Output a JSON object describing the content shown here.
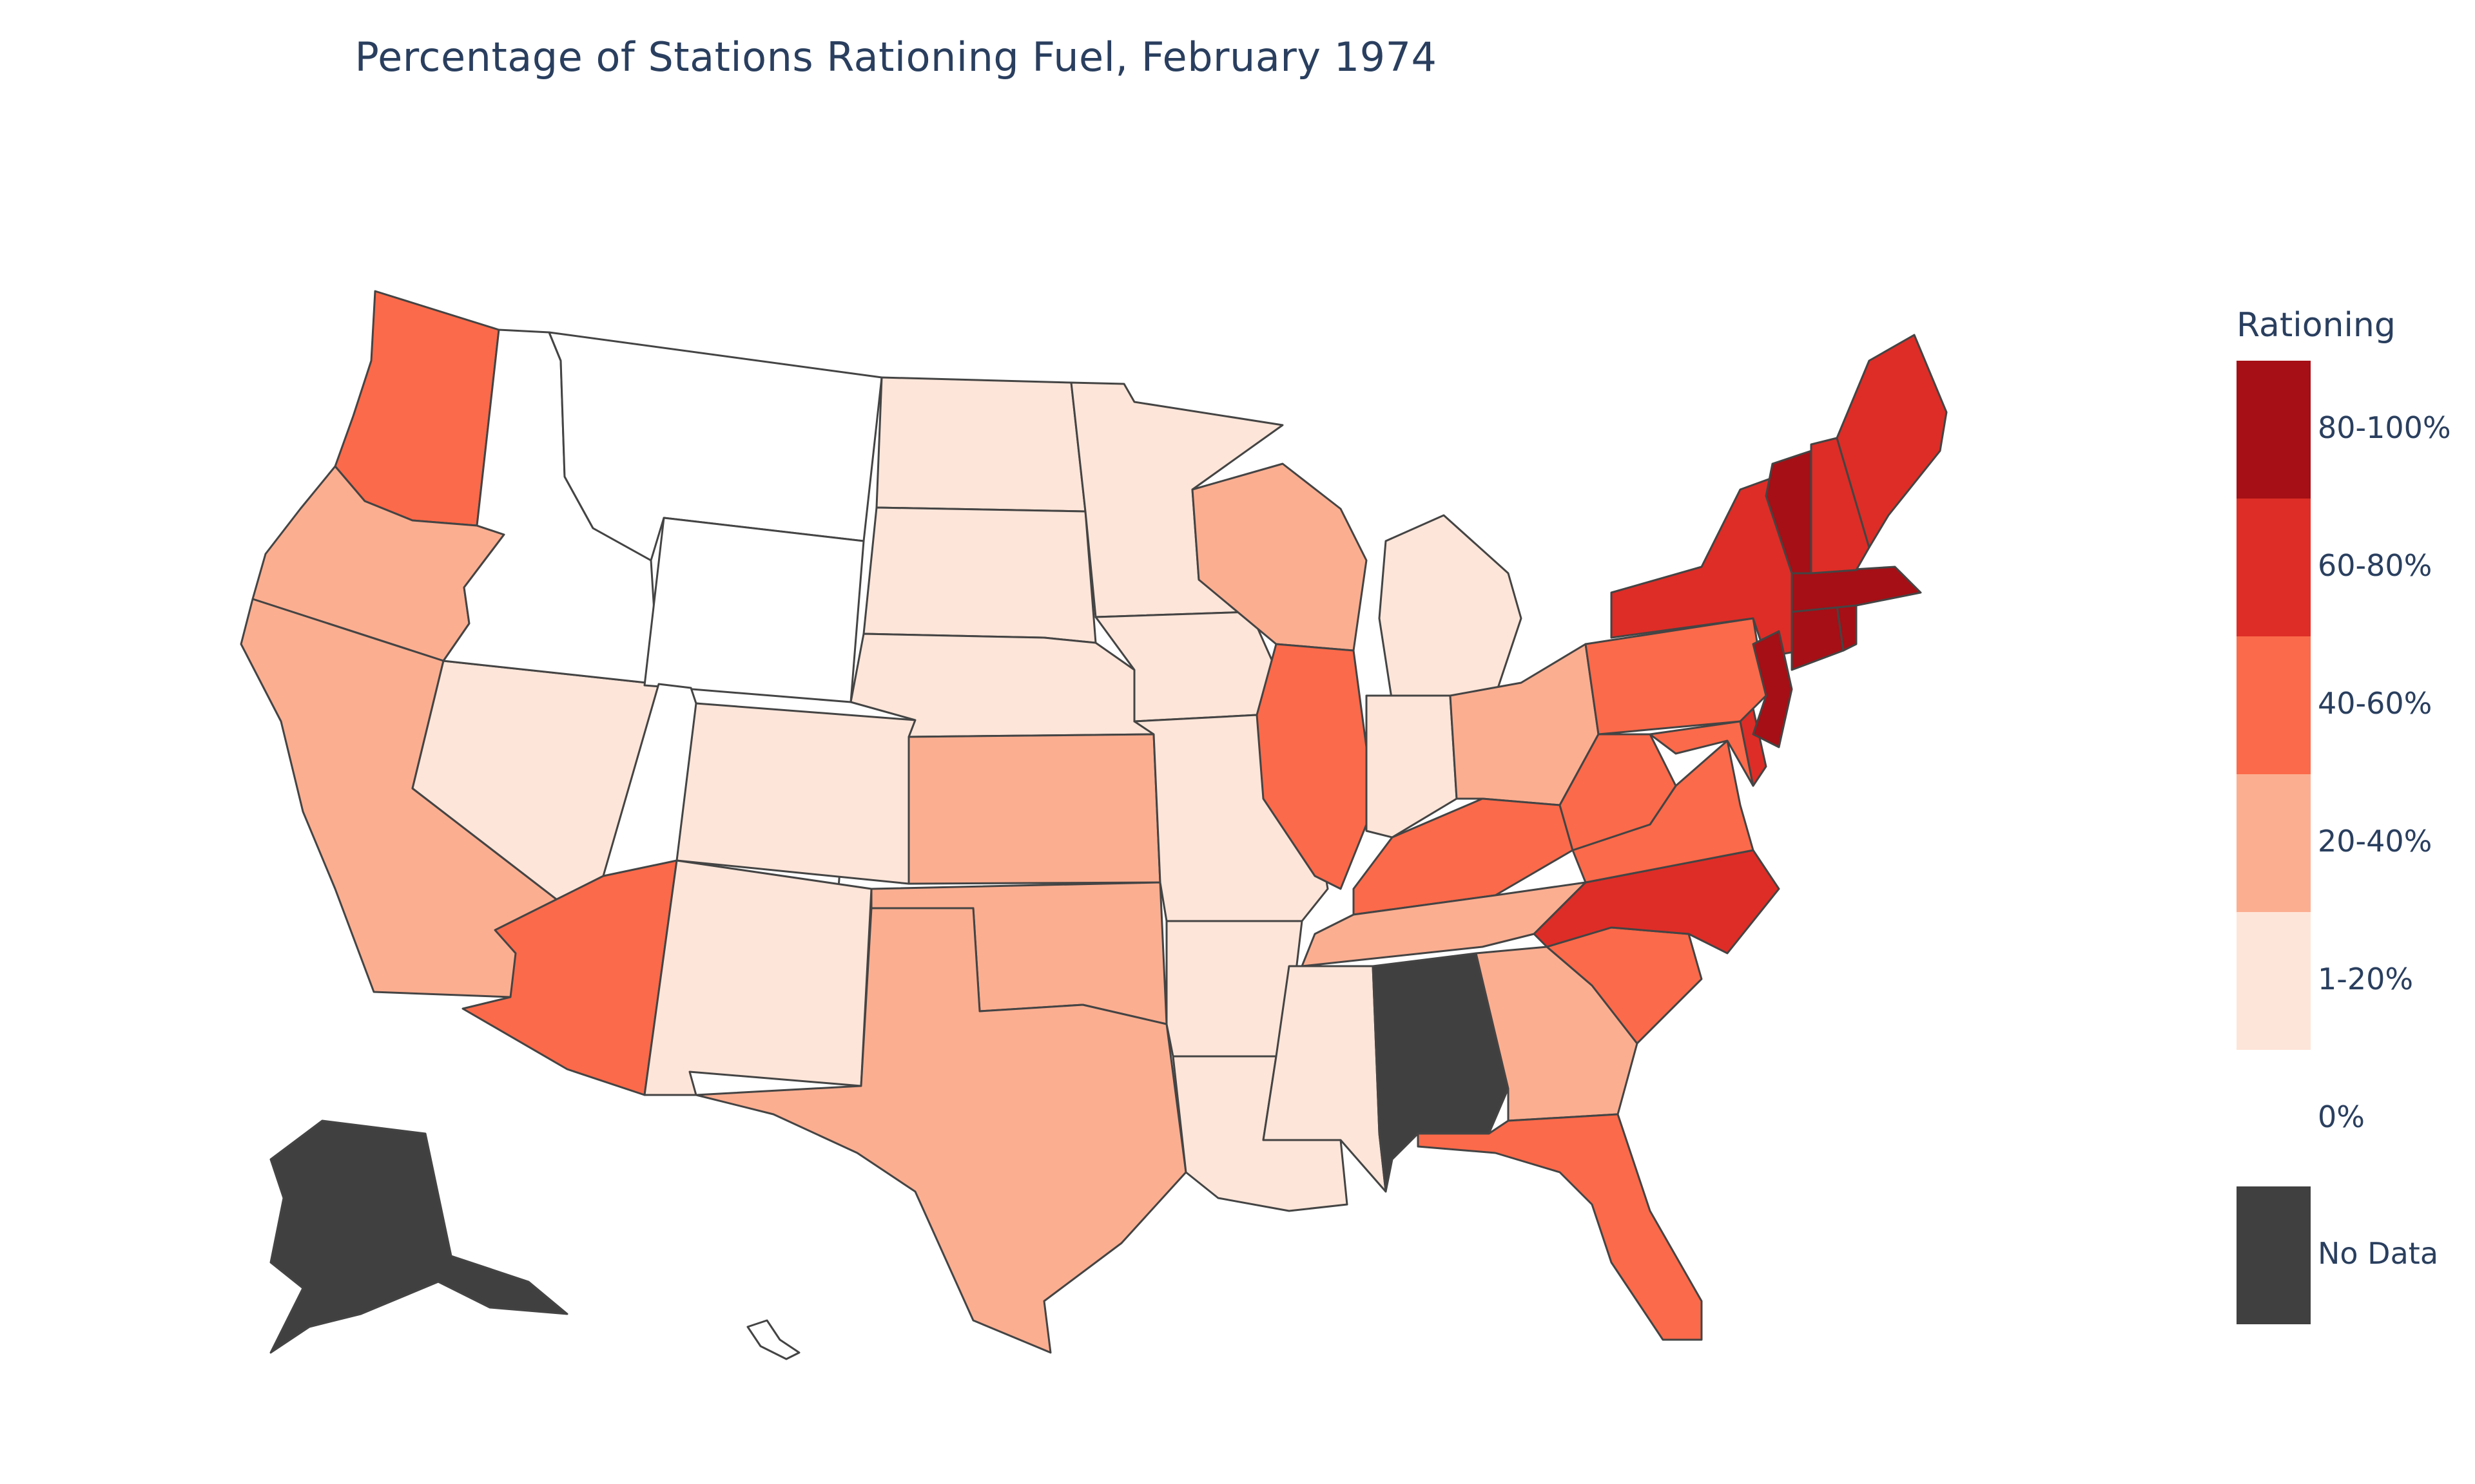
{
  "chart_data": {
    "type": "choropleth",
    "title": "Percentage of Stations Rationing Fuel, February 1974",
    "legend": {
      "title": "Rationing",
      "placement": "right",
      "bins": [
        {
          "label": "80-100%",
          "color": "#a50f15"
        },
        {
          "label": "60-80%",
          "color": "#de2d26"
        },
        {
          "label": "40-60%",
          "color": "#fb6a4a"
        },
        {
          "label": "20-40%",
          "color": "#fcae91"
        },
        {
          "label": "1-20%",
          "color": "#fee5d9"
        },
        {
          "label": "0%",
          "color": "#ffffff"
        },
        {
          "label": "No Data",
          "color": "#404040"
        }
      ]
    },
    "states": [
      {
        "name": "WA",
        "bin": "40-60%"
      },
      {
        "name": "OR",
        "bin": "20-40%"
      },
      {
        "name": "CA",
        "bin": "20-40%"
      },
      {
        "name": "NV",
        "bin": "1-20%"
      },
      {
        "name": "ID",
        "bin": "0%"
      },
      {
        "name": "MT",
        "bin": "0%"
      },
      {
        "name": "WY",
        "bin": "0%"
      },
      {
        "name": "UT",
        "bin": "0%"
      },
      {
        "name": "CO",
        "bin": "1-20%"
      },
      {
        "name": "AZ",
        "bin": "40-60%"
      },
      {
        "name": "NM",
        "bin": "1-20%"
      },
      {
        "name": "ND",
        "bin": "1-20%"
      },
      {
        "name": "SD",
        "bin": "1-20%"
      },
      {
        "name": "NE",
        "bin": "1-20%"
      },
      {
        "name": "KS",
        "bin": "20-40%"
      },
      {
        "name": "OK",
        "bin": "20-40%"
      },
      {
        "name": "TX",
        "bin": "20-40%"
      },
      {
        "name": "MN",
        "bin": "1-20%"
      },
      {
        "name": "IA",
        "bin": "1-20%"
      },
      {
        "name": "MO",
        "bin": "1-20%"
      },
      {
        "name": "AR",
        "bin": "1-20%"
      },
      {
        "name": "LA",
        "bin": "1-20%"
      },
      {
        "name": "WI",
        "bin": "20-40%"
      },
      {
        "name": "IL",
        "bin": "40-60%"
      },
      {
        "name": "MI",
        "bin": "1-20%"
      },
      {
        "name": "IN",
        "bin": "1-20%"
      },
      {
        "name": "OH",
        "bin": "20-40%"
      },
      {
        "name": "KY",
        "bin": "40-60%"
      },
      {
        "name": "TN",
        "bin": "20-40%"
      },
      {
        "name": "MS",
        "bin": "1-20%"
      },
      {
        "name": "AL",
        "bin": "No Data"
      },
      {
        "name": "GA",
        "bin": "20-40%"
      },
      {
        "name": "FL",
        "bin": "40-60%"
      },
      {
        "name": "SC",
        "bin": "40-60%"
      },
      {
        "name": "NC",
        "bin": "60-80%"
      },
      {
        "name": "VA",
        "bin": "40-60%"
      },
      {
        "name": "WV",
        "bin": "40-60%"
      },
      {
        "name": "PA",
        "bin": "40-60%"
      },
      {
        "name": "NY",
        "bin": "60-80%"
      },
      {
        "name": "MD",
        "bin": "40-60%"
      },
      {
        "name": "DE",
        "bin": "60-80%"
      },
      {
        "name": "NJ",
        "bin": "80-100%"
      },
      {
        "name": "CT",
        "bin": "80-100%"
      },
      {
        "name": "RI",
        "bin": "80-100%"
      },
      {
        "name": "MA",
        "bin": "80-100%"
      },
      {
        "name": "VT",
        "bin": "80-100%"
      },
      {
        "name": "NH",
        "bin": "60-80%"
      },
      {
        "name": "ME",
        "bin": "60-80%"
      },
      {
        "name": "AK",
        "bin": "No Data"
      },
      {
        "name": "HI",
        "bin": "0%"
      }
    ]
  }
}
